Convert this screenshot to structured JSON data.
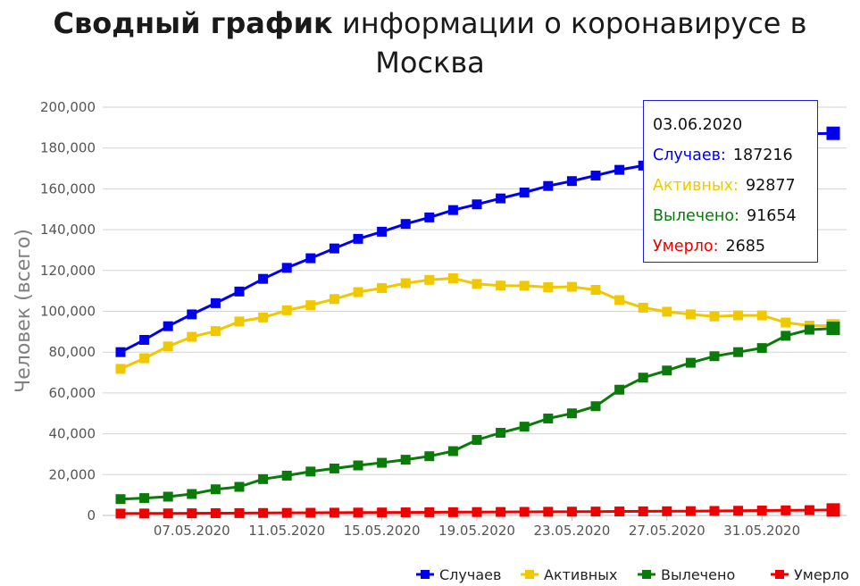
{
  "title_bold": "Сводный график",
  "title_rest": "информации о коронавирусе в Москва",
  "tooltip": {
    "date": "03.06.2020",
    "rows": [
      {
        "label": "Случаев:",
        "value": "187216",
        "color": "#0000ee"
      },
      {
        "label": "Активных:",
        "value": "92877",
        "color": "#f0c800"
      },
      {
        "label": "Вылечено:",
        "value": "91654",
        "color": "#0a7a0a"
      },
      {
        "label": "Умерло:",
        "value": "2685",
        "color": "#ee0000"
      }
    ]
  },
  "chart_data": {
    "type": "line",
    "ylabel": "Человек (всего)",
    "ylim": [
      0,
      200000
    ],
    "yticks": [
      "0",
      "20,000",
      "40,000",
      "60,000",
      "80,000",
      "100,000",
      "120,000",
      "140,000",
      "160,000",
      "180,000",
      "200,000"
    ],
    "x": [
      "04.05.2020",
      "05.05.2020",
      "06.05.2020",
      "07.05.2020",
      "08.05.2020",
      "09.05.2020",
      "10.05.2020",
      "11.05.2020",
      "12.05.2020",
      "13.05.2020",
      "14.05.2020",
      "15.05.2020",
      "16.05.2020",
      "17.05.2020",
      "18.05.2020",
      "19.05.2020",
      "20.05.2020",
      "21.05.2020",
      "22.05.2020",
      "23.05.2020",
      "24.05.2020",
      "25.05.2020",
      "26.05.2020",
      "27.05.2020",
      "28.05.2020",
      "29.05.2020",
      "30.05.2020",
      "31.05.2020",
      "01.06.2020",
      "02.06.2020",
      "03.06.2020"
    ],
    "xtick_labels": [
      "07.05.2020",
      "11.05.2020",
      "15.05.2020",
      "19.05.2020",
      "23.05.2020",
      "27.05.2020",
      "31.05.2020"
    ],
    "grid": true,
    "legend_position": "bottom-right",
    "series": [
      {
        "name": "Случаев",
        "color": "#0000ee",
        "values": [
          80000,
          86000,
          92700,
          98500,
          104000,
          109700,
          115900,
          121300,
          126000,
          130800,
          135500,
          139000,
          142800,
          146000,
          149600,
          152400,
          155300,
          158200,
          161400,
          163800,
          166500,
          169300,
          171400,
          174000,
          177000,
          179500,
          182000,
          184400,
          186200,
          187000,
          187216
        ]
      },
      {
        "name": "Активных",
        "color": "#f0c800",
        "values": [
          71800,
          77000,
          82800,
          87500,
          90300,
          95000,
          97000,
          100500,
          103000,
          106000,
          109400,
          111400,
          113800,
          115400,
          116200,
          113400,
          112600,
          112500,
          111800,
          112000,
          110500,
          105500,
          101800,
          99800,
          98500,
          97500,
          98000,
          98000,
          94500,
          93000,
          92877
        ]
      },
      {
        "name": "Вылечено",
        "color": "#0a7a0a",
        "values": [
          8000,
          8500,
          9200,
          10500,
          12800,
          14000,
          17800,
          19500,
          21500,
          23000,
          24500,
          25800,
          27300,
          29000,
          31500,
          37000,
          40500,
          43500,
          47500,
          50000,
          53500,
          61600,
          67500,
          71000,
          74800,
          78000,
          80000,
          82000,
          88000,
          91000,
          91654
        ]
      },
      {
        "name": "Умерло",
        "color": "#ee0000",
        "values": [
          900,
          950,
          1000,
          1050,
          1100,
          1150,
          1200,
          1250,
          1300,
          1350,
          1400,
          1450,
          1500,
          1550,
          1600,
          1650,
          1700,
          1750,
          1800,
          1850,
          1900,
          1950,
          2000,
          2050,
          2100,
          2200,
          2300,
          2400,
          2500,
          2600,
          2685
        ]
      }
    ]
  }
}
